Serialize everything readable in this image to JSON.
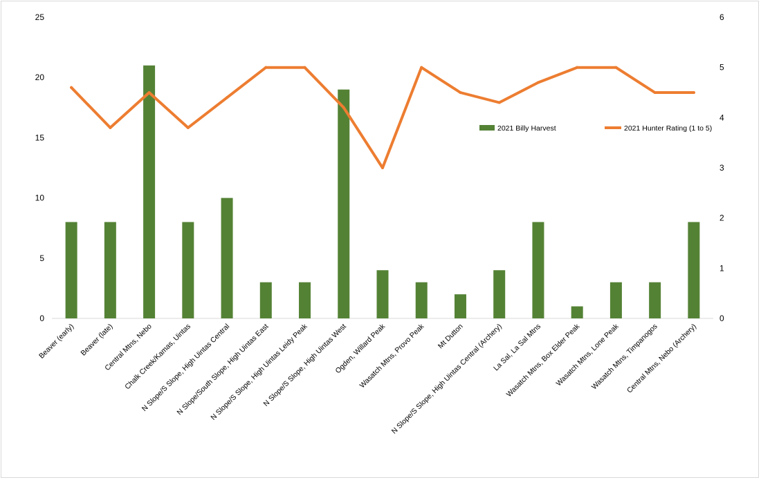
{
  "chart_data": {
    "type": "bar+line",
    "categories": [
      "Beaver (early)",
      "Beaver (late)",
      "Central Mtns, Nebo",
      "Chalk Creek/Kamas, Uintas",
      "N Slope/S Slope, High Uintas Central",
      "N Slope/South Slope, High Uintas East",
      "N Slope/S Slope, High Uintas Leidy Peak",
      "N Slope/S Slope, High Uintas West",
      "Ogden, Willard Peak",
      "Wasatch Mtns, Provo Peak",
      "Mt Dutton",
      "N Slope/S Slope, High Uintas Central (Archery)",
      "La Sal, La Sal Mtns",
      "Wasatch Mtns, Box Elder Peak",
      "Wasatch Mtns, Lone Peak",
      "Wasatch Mtns, Timpanogos",
      "Central Mtns, Nebo (Archery)"
    ],
    "series": [
      {
        "name": "2021 Billy Harvest",
        "type": "bar",
        "axis": "left",
        "color": "#548235",
        "values": [
          8,
          8,
          21,
          8,
          10,
          3,
          3,
          19,
          4,
          3,
          2,
          4,
          8,
          1,
          3,
          3,
          8
        ]
      },
      {
        "name": "2021 Hunter Rating (1 to 5)",
        "type": "line",
        "axis": "right",
        "color": "#ed7d31",
        "values": [
          4.6,
          3.8,
          4.5,
          3.8,
          4.4,
          5,
          5,
          4.2,
          3,
          5,
          4.5,
          4.3,
          4.7,
          5,
          5,
          4.5,
          4.5
        ]
      }
    ],
    "y_left": {
      "min": 0,
      "max": 25,
      "ticks": [
        "0",
        "5",
        "10",
        "15",
        "20",
        "25"
      ]
    },
    "y_right": {
      "min": 0,
      "max": 6,
      "ticks": [
        "0",
        "1",
        "2",
        "3",
        "4",
        "5",
        "6"
      ]
    },
    "grid": false,
    "legend": {
      "position": "right-inside"
    }
  }
}
